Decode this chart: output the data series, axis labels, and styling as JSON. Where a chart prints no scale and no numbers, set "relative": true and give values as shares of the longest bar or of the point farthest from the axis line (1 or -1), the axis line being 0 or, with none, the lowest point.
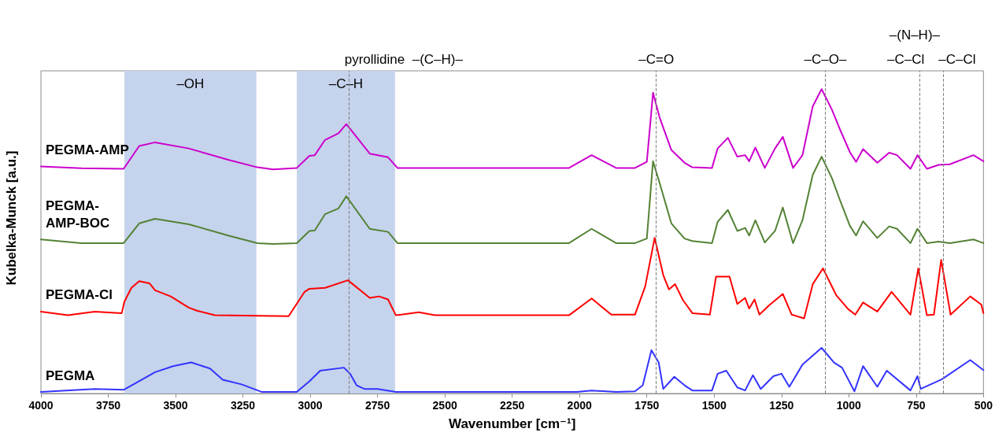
{
  "chart_data": {
    "type": "line",
    "xlabel": "Wavenumber [cm⁻¹]",
    "ylabel": "Kubelka-Munck [a.u.]",
    "relative": true,
    "grid": false,
    "legend": false,
    "line_style": "solid",
    "xlim": [
      4000,
      500
    ],
    "xticks": [
      4000,
      3750,
      3500,
      3250,
      3000,
      2750,
      2500,
      2250,
      2000,
      1750,
      1500,
      1250,
      1000,
      750,
      500
    ],
    "series": [
      {
        "name": "PEGMA-AMP",
        "color": "#cc00cc",
        "x": [
          4000,
          3850,
          3693,
          3635,
          3576,
          3451,
          3305,
          3196,
          3138,
          3050,
          3003,
          2983,
          2945,
          2895,
          2866,
          2779,
          2711,
          2676,
          2361,
          2039,
          1955,
          1864,
          1794,
          1750,
          1727,
          1703,
          1659,
          1610,
          1581,
          1508,
          1487,
          1449,
          1414,
          1385,
          1370,
          1347,
          1312,
          1274,
          1245,
          1207,
          1172,
          1134,
          1101,
          1063,
          1034,
          996,
          973,
          947,
          894,
          850,
          821,
          771,
          745,
          710,
          666,
          625,
          537,
          500
        ],
        "values": [
          0.746,
          0.74,
          0.738,
          0.813,
          0.825,
          0.805,
          0.768,
          0.743,
          0.736,
          0.741,
          0.781,
          0.783,
          0.833,
          0.855,
          0.885,
          0.788,
          0.776,
          0.741,
          0.741,
          0.741,
          0.783,
          0.741,
          0.741,
          0.761,
          0.988,
          0.908,
          0.8,
          0.758,
          0.743,
          0.741,
          0.805,
          0.84,
          0.778,
          0.783,
          0.763,
          0.808,
          0.741,
          0.805,
          0.843,
          0.741,
          0.783,
          0.943,
          1,
          0.933,
          0.87,
          0.793,
          0.761,
          0.803,
          0.758,
          0.791,
          0.783,
          0.738,
          0.783,
          0.738,
          0.751,
          0.753,
          0.783,
          0.763
        ]
      },
      {
        "name": "PEGMA-AMP-BOC",
        "color": "#548235",
        "x": [
          4000,
          3850,
          3693,
          3635,
          3576,
          3451,
          3305,
          3196,
          3138,
          3050,
          3003,
          2983,
          2945,
          2895,
          2866,
          2779,
          2711,
          2676,
          2361,
          2039,
          1955,
          1864,
          1794,
          1750,
          1727,
          1703,
          1659,
          1610,
          1581,
          1508,
          1487,
          1449,
          1414,
          1385,
          1370,
          1347,
          1312,
          1274,
          1245,
          1207,
          1172,
          1134,
          1101,
          1063,
          1034,
          996,
          973,
          947,
          894,
          850,
          821,
          771,
          745,
          710,
          666,
          625,
          537,
          500
        ],
        "values": [
          0.506,
          0.494,
          0.494,
          0.559,
          0.574,
          0.556,
          0.519,
          0.494,
          0.491,
          0.494,
          0.534,
          0.536,
          0.589,
          0.608,
          0.648,
          0.541,
          0.531,
          0.494,
          0.494,
          0.494,
          0.541,
          0.494,
          0.494,
          0.509,
          0.763,
          0.693,
          0.559,
          0.509,
          0.501,
          0.494,
          0.564,
          0.603,
          0.534,
          0.544,
          0.519,
          0.569,
          0.496,
          0.534,
          0.611,
          0.494,
          0.569,
          0.718,
          0.778,
          0.708,
          0.638,
          0.551,
          0.519,
          0.566,
          0.511,
          0.549,
          0.541,
          0.494,
          0.541,
          0.494,
          0.499,
          0.494,
          0.506,
          0.494
        ]
      },
      {
        "name": "PEGMA-Cl",
        "color": "#ff0000",
        "x": [
          4000,
          3900,
          3800,
          3700,
          3690,
          3664,
          3635,
          3597,
          3576,
          3518,
          3451,
          3421,
          3354,
          3080,
          3021,
          3003,
          2945,
          2860,
          2779,
          2744,
          2711,
          2682,
          2597,
          2537,
          2039,
          1955,
          1882,
          1794,
          1756,
          1721,
          1689,
          1668,
          1645,
          1616,
          1581,
          1516,
          1493,
          1443,
          1414,
          1385,
          1370,
          1350,
          1332,
          1297,
          1245,
          1212,
          1166,
          1134,
          1096,
          1046,
          1002,
          976,
          947,
          894,
          841,
          771,
          742,
          710,
          684,
          657,
          622,
          549,
          508,
          500
        ],
        "values": [
          0.269,
          0.257,
          0.269,
          0.264,
          0.302,
          0.347,
          0.369,
          0.362,
          0.339,
          0.319,
          0.282,
          0.272,
          0.257,
          0.254,
          0.334,
          0.344,
          0.347,
          0.372,
          0.314,
          0.319,
          0.309,
          0.257,
          0.267,
          0.257,
          0.257,
          0.312,
          0.259,
          0.259,
          0.352,
          0.511,
          0.389,
          0.342,
          0.359,
          0.307,
          0.264,
          0.259,
          0.384,
          0.384,
          0.294,
          0.314,
          0.279,
          0.309,
          0.259,
          0.289,
          0.327,
          0.259,
          0.247,
          0.359,
          0.411,
          0.322,
          0.277,
          0.259,
          0.299,
          0.269,
          0.334,
          0.259,
          0.411,
          0.257,
          0.259,
          0.439,
          0.259,
          0.319,
          0.292,
          0.264
        ]
      },
      {
        "name": "PEGMA",
        "color": "#3333ff",
        "x": [
          4000,
          3800,
          3693,
          3646,
          3576,
          3509,
          3442,
          3372,
          3325,
          3255,
          3179,
          3050,
          3003,
          2963,
          2875,
          2852,
          2828,
          2799,
          2750,
          2682,
          2010,
          1955,
          1864,
          1794,
          1765,
          1733,
          1706,
          1689,
          1648,
          1610,
          1581,
          1508,
          1487,
          1455,
          1414,
          1385,
          1356,
          1327,
          1280,
          1250,
          1221,
          1172,
          1101,
          1055,
          1025,
          979,
          947,
          894,
          859,
          771,
          745,
          733,
          654,
          549,
          500
        ],
        "values": [
          0.005,
          0.015,
          0.012,
          0.035,
          0.07,
          0.09,
          0.102,
          0.082,
          0.045,
          0.03,
          0.005,
          0.005,
          0.04,
          0.075,
          0.085,
          0.065,
          0.027,
          0.015,
          0.015,
          0.005,
          0.005,
          0.01,
          0.005,
          0.007,
          0.027,
          0.142,
          0.102,
          0.015,
          0.055,
          0.027,
          0.01,
          0.01,
          0.065,
          0.075,
          0.02,
          0.01,
          0.06,
          0.015,
          0.057,
          0.065,
          0.022,
          0.095,
          0.15,
          0.102,
          0.085,
          0.007,
          0.09,
          0.022,
          0.075,
          0.01,
          0.057,
          0.015,
          0.047,
          0.11,
          0.077
        ]
      }
    ],
    "bands": [
      {
        "axis": "x",
        "from": 3690,
        "to": 3200,
        "label": "–OH",
        "color": "#c5d3ec"
      },
      {
        "axis": "x",
        "from": 3050,
        "to": 2685,
        "label": "–C–H",
        "color": "#c5d3ec"
      }
    ],
    "annotations": [
      "–(N–H)–"
    ],
    "ref_lines": [
      {
        "axis": "x",
        "value": 2855,
        "label": "pyrollidine  –(C–H)–",
        "color": "#808080",
        "line_style": "dashed"
      },
      {
        "axis": "x",
        "value": 1715,
        "label": "–C=O",
        "color": "#808080",
        "line_style": "dashed"
      },
      {
        "axis": "x",
        "value": 1087,
        "label": "–C–O–",
        "color": "#808080",
        "line_style": "dashed"
      },
      {
        "axis": "x",
        "value": 737,
        "label": "–C–Cl",
        "color": "#808080",
        "line_style": "dashed"
      },
      {
        "axis": "x",
        "value": 649,
        "label": "–C–Cl",
        "color": "#808080",
        "line_style": "dashed"
      }
    ]
  }
}
